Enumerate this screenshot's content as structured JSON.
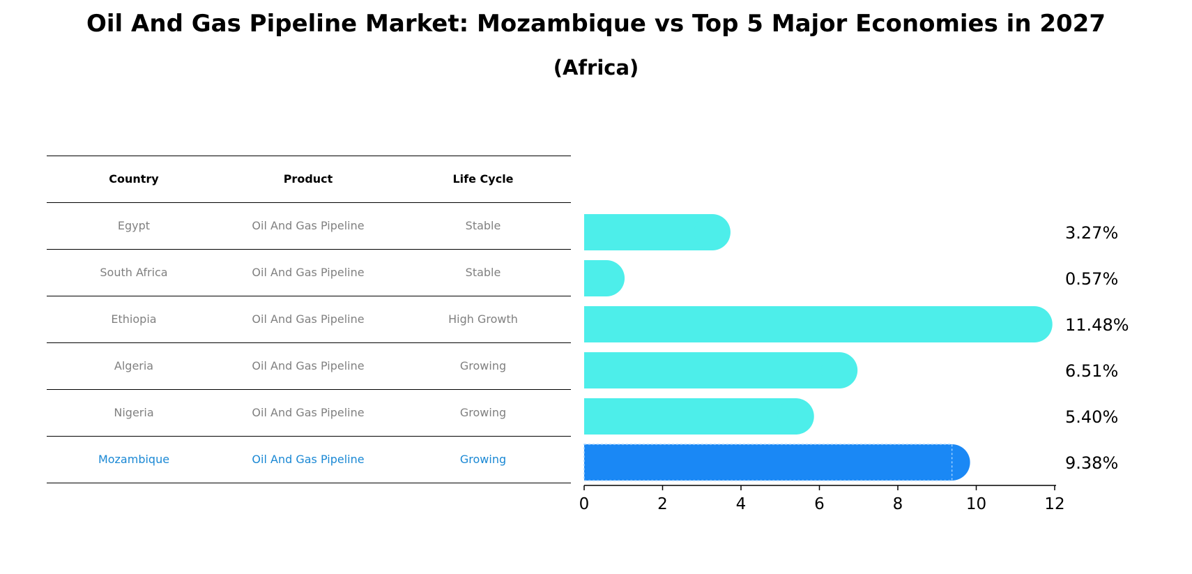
{
  "title": "Oil And Gas Pipeline Market: Mozambique vs Top 5 Major Economies in 2027",
  "subtitle": "(Africa)",
  "table": {
    "headers": [
      "Country",
      "Product",
      "Life Cycle"
    ],
    "rows": [
      {
        "country": "Egypt",
        "product": "Oil And Gas Pipeline",
        "life_cycle": "Stable"
      },
      {
        "country": "South Africa",
        "product": "Oil And Gas Pipeline",
        "life_cycle": "Stable"
      },
      {
        "country": "Ethiopia",
        "product": "Oil And Gas Pipeline",
        "life_cycle": "High Growth"
      },
      {
        "country": "Algeria",
        "product": "Oil And Gas Pipeline",
        "life_cycle": "Growing"
      },
      {
        "country": "Nigeria",
        "product": "Oil And Gas Pipeline",
        "life_cycle": "Growing"
      },
      {
        "country": "Mozambique",
        "product": "Oil And Gas Pipeline",
        "life_cycle": "Growing"
      }
    ]
  },
  "colors": {
    "bar": "#4deeea",
    "highlight_bar": "#1a88f5",
    "highlight_text": "#1a88d4",
    "row_text": "#808080"
  },
  "chart_data": {
    "type": "bar",
    "orientation": "horizontal",
    "categories": [
      "Egypt",
      "South Africa",
      "Ethiopia",
      "Algeria",
      "Nigeria",
      "Mozambique"
    ],
    "values": [
      3.27,
      0.57,
      11.48,
      6.51,
      5.4,
      9.38
    ],
    "value_labels": [
      "3.27%",
      "0.57%",
      "11.48%",
      "6.51%",
      "5.40%",
      "9.38%"
    ],
    "highlight": "Mozambique",
    "xlim": [
      0,
      12
    ],
    "xticks": [
      0,
      2,
      4,
      6,
      8,
      10,
      12
    ],
    "xlabel": "",
    "ylabel": ""
  }
}
